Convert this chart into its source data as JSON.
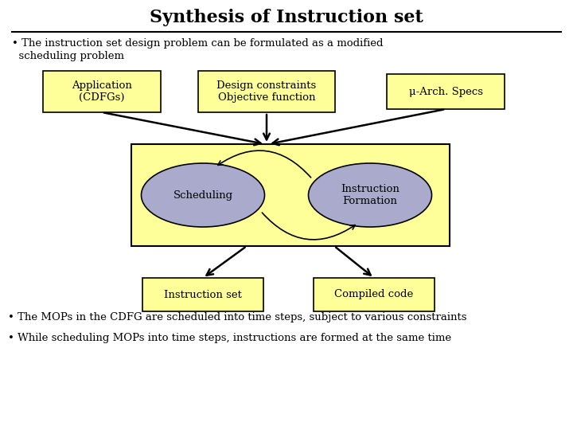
{
  "title": "Synthesis of Instruction set",
  "bg_color": "#ffffff",
  "title_fontsize": 16,
  "bullet1_line1": "• The instruction set design problem can be formulated as a modified",
  "bullet1_line2": "  scheduling problem",
  "bullet2": "• The MOPs in the CDFG are scheduled into time steps, subject to various constraints",
  "bullet3": "• While scheduling MOPs into time steps, instructions are formed at the same time",
  "box_app": "Application\n(CDFGs)",
  "box_design": "Design constraints\nObjective function",
  "box_mu": "μ-Arch. Specs",
  "box_sched": "Scheduling",
  "box_instr_form": "Instruction\nFormation",
  "box_instr_set": "Instruction set",
  "box_compiled": "Compiled code",
  "yellow_light": "#ffff99",
  "yellow_box": "#ffff99",
  "lavender": "#aaaacc",
  "text_color": "#000000",
  "box_border": "#000000"
}
